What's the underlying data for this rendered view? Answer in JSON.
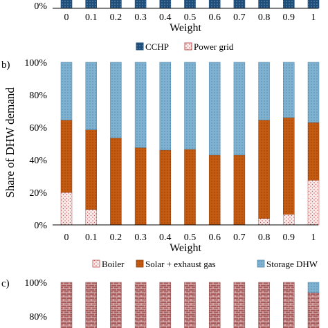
{
  "top_panel": {
    "ytick": "0%",
    "xlabel": "Weight",
    "categories": [
      "0",
      "0.1",
      "0.2",
      "0.3",
      "0.4",
      "0.5",
      "0.6",
      "0.7",
      "0.8",
      "0.9",
      "1"
    ],
    "legend": [
      {
        "label": "CCHP",
        "color": "#1f4e79"
      },
      {
        "label": "Power grid",
        "color": "#c0504d"
      }
    ]
  },
  "chart_data": [
    {
      "type": "bar",
      "stacked": true,
      "panel_label": "b)",
      "ylabel": "Share of DHW demand",
      "xlabel": "Weight",
      "categories": [
        "0",
        "0.1",
        "0.2",
        "0.3",
        "0.4",
        "0.5",
        "0.6",
        "0.7",
        "0.8",
        "0.9",
        "1"
      ],
      "yticks": [
        "0%",
        "20%",
        "40%",
        "60%",
        "80%",
        "100%"
      ],
      "ylim": [
        0,
        100
      ],
      "series": [
        {
          "name": "Boiler",
          "color": "#c0504d",
          "values": [
            20,
            9.5,
            0,
            0,
            0,
            0,
            0,
            0,
            4,
            6.5,
            27.5
          ]
        },
        {
          "name": "Solar + exhaust gas",
          "color": "#c55a11",
          "values": [
            44.5,
            49,
            53.5,
            47.5,
            46,
            46.5,
            43,
            43,
            60.5,
            59.5,
            35.5
          ]
        },
        {
          "name": "Storage DHW",
          "color": "#6fa8c7",
          "values": [
            35.5,
            41.5,
            46.5,
            52.5,
            54,
            53.5,
            57,
            57,
            35.5,
            34,
            37
          ]
        }
      ]
    },
    {
      "type": "bar",
      "stacked": true,
      "panel_label": "c)",
      "ylabel": "",
      "yticks": [
        "80%",
        "100%"
      ],
      "ylim": [
        0,
        100
      ],
      "categories": [
        "0",
        "0.1",
        "0.2",
        "0.3",
        "0.4",
        "0.5",
        "0.6",
        "0.7",
        "0.8",
        "0.9",
        "1"
      ],
      "series": [
        {
          "name": "",
          "color": "#a85a5a",
          "values": [
            100,
            100,
            100,
            100,
            100,
            100,
            100,
            100,
            100,
            100,
            94
          ]
        },
        {
          "name": "",
          "color": "#6fa8c7",
          "values": [
            0,
            0,
            0,
            0,
            0,
            0,
            0,
            0,
            0,
            0,
            6
          ]
        }
      ]
    }
  ]
}
